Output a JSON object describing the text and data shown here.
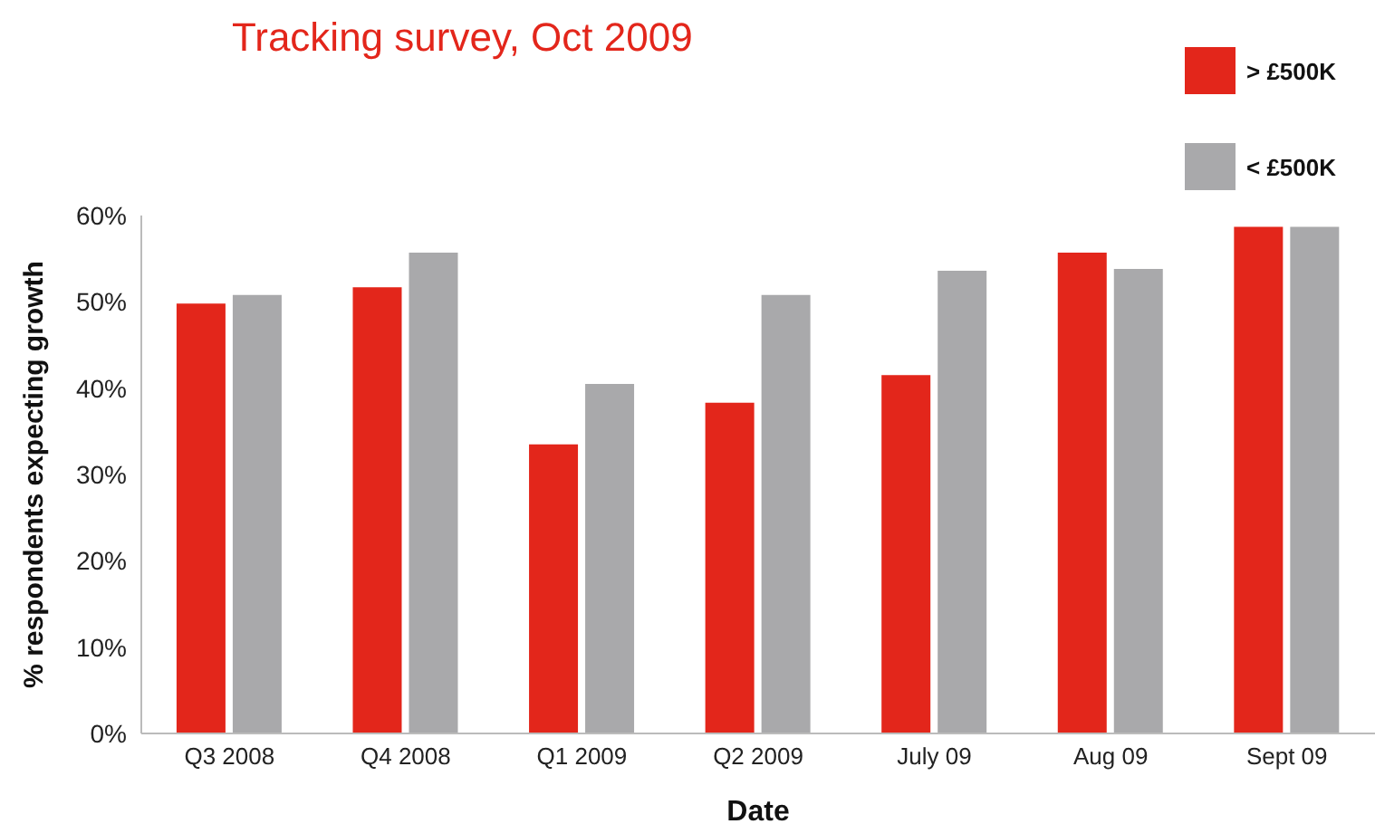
{
  "chart_data": {
    "type": "bar",
    "title": "Tracking survey, Oct 2009",
    "xlabel": "Date",
    "ylabel": "% respondents expecting growth",
    "categories": [
      "Q3 2008",
      "Q4 2008",
      "Q1 2009",
      "Q2 2009",
      "July 09",
      "Aug 09",
      "Sept 09"
    ],
    "series": [
      {
        "name": "> £500K",
        "color": "#e3261b",
        "values": [
          49.8,
          51.7,
          33.5,
          38.3,
          41.5,
          55.7,
          58.7
        ]
      },
      {
        "name": "< £500K",
        "color": "#a9a9ab",
        "values": [
          50.8,
          55.7,
          40.5,
          50.8,
          53.6,
          53.8,
          58.7
        ]
      }
    ],
    "ylim": [
      0,
      60
    ],
    "yticks": [
      {
        "value": 0,
        "label": "0%"
      },
      {
        "value": 10,
        "label": "10%"
      },
      {
        "value": 20,
        "label": "20%"
      },
      {
        "value": 30,
        "label": "30%"
      },
      {
        "value": 40,
        "label": "40%"
      },
      {
        "value": 50,
        "label": "50%"
      },
      {
        "value": 60,
        "label": "60%"
      }
    ],
    "grid": false,
    "legend": "top right"
  }
}
